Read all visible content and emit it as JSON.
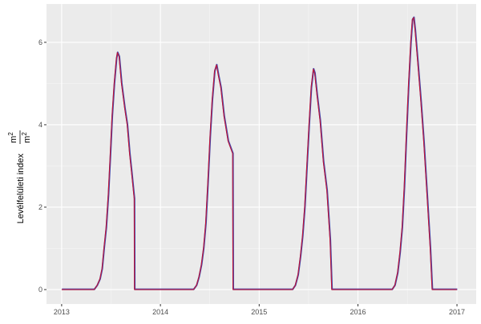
{
  "chart_data": {
    "type": "line",
    "title": "",
    "xlabel": "",
    "ylabel": "Levélfelületi index",
    "ylabel_unit_num": "m",
    "ylabel_unit_den": "m",
    "ylabel_unit_exp": "2",
    "xlim": [
      "2012-11-06",
      "2017-03-13"
    ],
    "ylim": [
      -0.35,
      6.93
    ],
    "x_ticks": [
      {
        "date": "2013-01-01",
        "label": "2013"
      },
      {
        "date": "2014-01-01",
        "label": "2014"
      },
      {
        "date": "2015-01-01",
        "label": "2015"
      },
      {
        "date": "2016-01-01",
        "label": "2016"
      },
      {
        "date": "2017-01-01",
        "label": "2017"
      }
    ],
    "y_ticks": [
      0,
      2,
      4,
      6
    ],
    "grid": true,
    "background": "#ebebeb",
    "series": [
      {
        "color": "#4a4aaa",
        "points": "shared"
      },
      {
        "color": "#c8102e",
        "points": "shared"
      }
    ],
    "points": [
      [
        "2013-01-01",
        0
      ],
      [
        "2013-05-01",
        0
      ],
      [
        "2013-05-12",
        0.1
      ],
      [
        "2013-05-22",
        0.25
      ],
      [
        "2013-05-30",
        0.5
      ],
      [
        "2013-06-06",
        1.0
      ],
      [
        "2013-06-14",
        1.5
      ],
      [
        "2013-06-22",
        2.3
      ],
      [
        "2013-06-29",
        3.2
      ],
      [
        "2013-07-06",
        4.2
      ],
      [
        "2013-07-14",
        5.0
      ],
      [
        "2013-07-22",
        5.6
      ],
      [
        "2013-07-26",
        5.75
      ],
      [
        "2013-08-01",
        5.65
      ],
      [
        "2013-08-10",
        5.0
      ],
      [
        "2013-08-22",
        4.4
      ],
      [
        "2013-08-31",
        4.0
      ],
      [
        "2013-09-09",
        3.3
      ],
      [
        "2013-09-17",
        2.8
      ],
      [
        "2013-09-26",
        2.2
      ],
      [
        "2013-09-27",
        0
      ],
      [
        "2014-05-03",
        0
      ],
      [
        "2014-05-14",
        0.1
      ],
      [
        "2014-05-23",
        0.3
      ],
      [
        "2014-06-01",
        0.6
      ],
      [
        "2014-06-09",
        1.0
      ],
      [
        "2014-06-17",
        1.6
      ],
      [
        "2014-06-25",
        2.6
      ],
      [
        "2014-07-03",
        3.7
      ],
      [
        "2014-07-11",
        4.6
      ],
      [
        "2014-07-20",
        5.3
      ],
      [
        "2014-07-27",
        5.45
      ],
      [
        "2014-08-03",
        5.2
      ],
      [
        "2014-08-12",
        4.9
      ],
      [
        "2014-08-24",
        4.2
      ],
      [
        "2014-09-08",
        3.6
      ],
      [
        "2014-09-25",
        3.3
      ],
      [
        "2014-09-26",
        0
      ],
      [
        "2015-05-04",
        0
      ],
      [
        "2015-05-14",
        0.1
      ],
      [
        "2015-05-24",
        0.35
      ],
      [
        "2015-06-02",
        0.8
      ],
      [
        "2015-06-10",
        1.3
      ],
      [
        "2015-06-18",
        2.0
      ],
      [
        "2015-06-26",
        3.0
      ],
      [
        "2015-07-04",
        4.0
      ],
      [
        "2015-07-12",
        4.9
      ],
      [
        "2015-07-20",
        5.35
      ],
      [
        "2015-07-25",
        5.25
      ],
      [
        "2015-08-03",
        4.7
      ],
      [
        "2015-08-14",
        4.1
      ],
      [
        "2015-08-26",
        3.1
      ],
      [
        "2015-09-08",
        2.4
      ],
      [
        "2015-09-20",
        1.2
      ],
      [
        "2015-09-26",
        0
      ],
      [
        "2016-05-06",
        0
      ],
      [
        "2016-05-16",
        0.1
      ],
      [
        "2016-05-26",
        0.4
      ],
      [
        "2016-06-04",
        0.9
      ],
      [
        "2016-06-12",
        1.5
      ],
      [
        "2016-06-20",
        2.5
      ],
      [
        "2016-06-28",
        3.8
      ],
      [
        "2016-07-06",
        5.0
      ],
      [
        "2016-07-14",
        6.0
      ],
      [
        "2016-07-20",
        6.55
      ],
      [
        "2016-07-25",
        6.6
      ],
      [
        "2016-07-30",
        6.3
      ],
      [
        "2016-08-09",
        5.5
      ],
      [
        "2016-08-20",
        4.6
      ],
      [
        "2016-08-31",
        3.6
      ],
      [
        "2016-09-12",
        2.3
      ],
      [
        "2016-09-24",
        1.0
      ],
      [
        "2016-10-01",
        0
      ],
      [
        "2017-01-01",
        0
      ]
    ]
  }
}
